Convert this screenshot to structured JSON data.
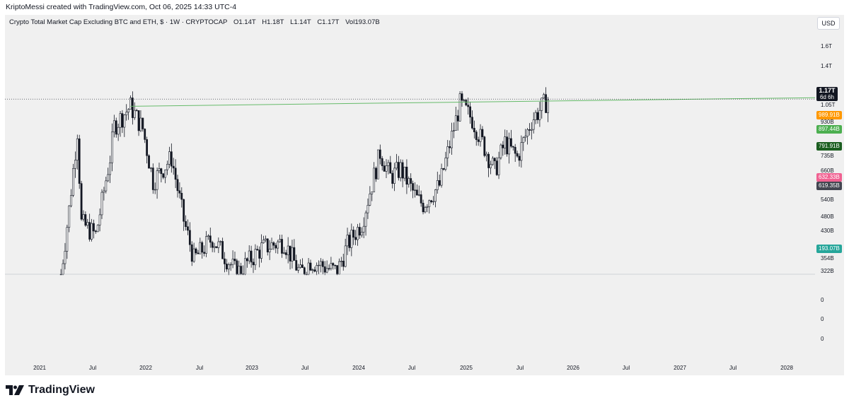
{
  "header": "KriptoMessi created with TradingView.com, Oct 06, 2025 14:33 UTC-4",
  "legend": {
    "symbol": "Crypto Total Market Cap Excluding BTC and ETH, $ · 1W · CRYPTOCAP",
    "open": "O1.14T",
    "high": "H1.18T",
    "low": "L1.14T",
    "close": "C1.17T",
    "volume": "Vol193.07B"
  },
  "currency_button": "USD",
  "brand": "TradingView",
  "current_price_badge": {
    "value": "1.17T",
    "countdown": "6d 6h"
  },
  "price_badges": [
    {
      "label": "989.91B",
      "color": "#ff9800"
    },
    {
      "label": "897.44B",
      "color": "#4caf50"
    },
    {
      "label": "791.91B",
      "color": "#1b5e20"
    },
    {
      "label": "632.33B",
      "color": "#f06292"
    },
    {
      "label": "619.35B",
      "color": "#434651"
    },
    {
      "label": "193.07B",
      "color": "#26a69a"
    }
  ],
  "chart_data": {
    "type": "candlestick",
    "title": "Crypto Total Market Cap Excluding BTC and ETH, $ · 1W · CRYPTOCAP",
    "yscale": "log",
    "y_ticks": [
      "1.6T",
      "1.4T",
      "1.05T",
      "930B",
      "735B",
      "660B",
      "540B",
      "480B",
      "430B",
      "354B",
      "322B",
      "0",
      "0",
      "0"
    ],
    "x_ticks": [
      "2021",
      "Jul",
      "2022",
      "Jul",
      "2023",
      "Jul",
      "2024",
      "Jul",
      "2025",
      "Jul",
      "2026",
      "Jul",
      "2027",
      "Jul",
      "2028"
    ],
    "series": [
      {
        "anchors": [
          [
            "2021-03-15",
            322
          ],
          [
            "2021-04-12",
            520
          ],
          [
            "2021-05-10",
            930
          ],
          [
            "2021-05-24",
            470
          ],
          [
            "2021-07-12",
            430
          ],
          [
            "2021-08-30",
            760
          ],
          [
            "2021-09-13",
            960
          ],
          [
            "2021-11-08",
            1110
          ],
          [
            "2021-12-20",
            940
          ],
          [
            "2022-01-24",
            640
          ],
          [
            "2022-03-28",
            760
          ],
          [
            "2022-05-09",
            480
          ],
          [
            "2022-06-13",
            360
          ],
          [
            "2022-08-15",
            420
          ],
          [
            "2022-11-07",
            325
          ],
          [
            "2023-01-30",
            390
          ],
          [
            "2023-04-17",
            410
          ],
          [
            "2023-06-12",
            322
          ],
          [
            "2023-07-17",
            355
          ],
          [
            "2023-10-16",
            328
          ],
          [
            "2023-11-20",
            400
          ],
          [
            "2024-01-08",
            470
          ],
          [
            "2024-03-11",
            790
          ],
          [
            "2024-04-15",
            660
          ],
          [
            "2024-05-20",
            700
          ],
          [
            "2024-07-15",
            560
          ],
          [
            "2024-08-05",
            540
          ],
          [
            "2024-09-30",
            620
          ],
          [
            "2024-12-09",
            1130
          ],
          [
            "2025-01-20",
            1010
          ],
          [
            "2025-02-24",
            850
          ],
          [
            "2025-04-07",
            690
          ],
          [
            "2025-05-12",
            850
          ],
          [
            "2025-06-23",
            760
          ],
          [
            "2025-08-11",
            1000
          ],
          [
            "2025-10-06",
            1170
          ]
        ],
        "last": {
          "open": "1.14T",
          "high": "1.18T",
          "low": "1.14T",
          "close": "1.17T"
        }
      }
    ],
    "resistance_line": {
      "from": [
        "2021-11-08",
        1110
      ],
      "to": [
        "2025-10-06",
        1170
      ]
    },
    "grid": false,
    "legend_position": "top-left"
  }
}
